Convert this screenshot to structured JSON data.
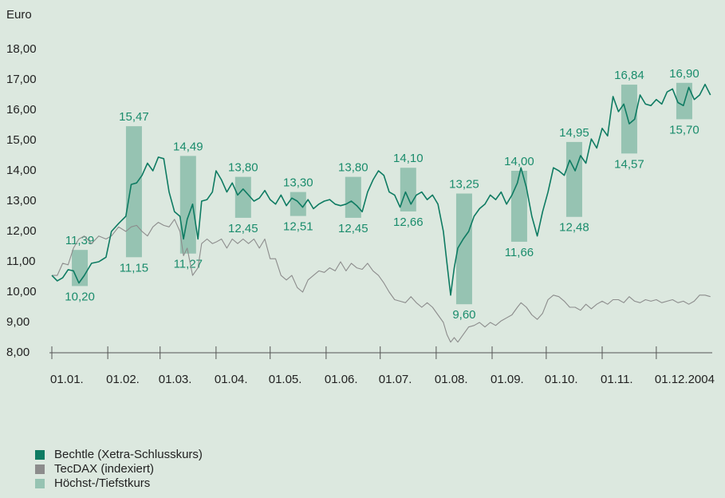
{
  "chart_data": {
    "type": "line",
    "ylabel": "Euro",
    "ylim": [
      8,
      18
    ],
    "yticks": [
      {
        "value": 8,
        "label": "8,00"
      },
      {
        "value": 9,
        "label": "9,00"
      },
      {
        "value": 10,
        "label": "10,00"
      },
      {
        "value": 11,
        "label": "11,00"
      },
      {
        "value": 12,
        "label": "12,00"
      },
      {
        "value": 13,
        "label": "13,00"
      },
      {
        "value": 14,
        "label": "14,00"
      },
      {
        "value": 15,
        "label": "15,00"
      },
      {
        "value": 16,
        "label": "16,00"
      },
      {
        "value": 17,
        "label": "17,00"
      },
      {
        "value": 18,
        "label": "18,00"
      }
    ],
    "xlim": [
      0,
      366
    ],
    "xticks": [
      {
        "value": 0,
        "label": "01.01."
      },
      {
        "value": 31,
        "label": "01.02."
      },
      {
        "value": 60,
        "label": "01.03."
      },
      {
        "value": 91,
        "label": "01.04."
      },
      {
        "value": 121,
        "label": "01.05."
      },
      {
        "value": 152,
        "label": "01.06."
      },
      {
        "value": 182,
        "label": "01.07."
      },
      {
        "value": 213,
        "label": "01.08."
      },
      {
        "value": 244,
        "label": "01.09."
      },
      {
        "value": 274,
        "label": "01.10."
      },
      {
        "value": 305,
        "label": "01.11."
      },
      {
        "value": 335,
        "label": "01.12.2004"
      }
    ],
    "x": [
      0,
      3,
      6,
      9,
      12,
      15,
      18,
      22,
      26,
      30,
      33,
      37,
      41,
      44,
      47,
      50,
      53,
      56,
      59,
      62,
      65,
      68,
      71,
      73,
      75,
      78,
      81,
      83,
      86,
      89,
      91,
      94,
      97,
      100,
      103,
      106,
      109,
      112,
      115,
      118,
      121,
      124,
      127,
      130,
      133,
      136,
      139,
      142,
      145,
      148,
      151,
      154,
      157,
      160,
      163,
      166,
      169,
      172,
      175,
      178,
      181,
      184,
      187,
      190,
      193,
      196,
      199,
      202,
      205,
      208,
      211,
      214,
      217,
      219,
      221,
      223,
      225,
      228,
      231,
      234,
      237,
      240,
      243,
      246,
      249,
      252,
      255,
      258,
      260,
      263,
      266,
      269,
      272,
      275,
      278,
      281,
      284,
      287,
      290,
      293,
      296,
      299,
      302,
      305,
      308,
      311,
      314,
      317,
      320,
      323,
      326,
      329,
      332,
      335,
      338,
      341,
      344,
      347,
      350,
      353,
      356,
      359,
      362,
      365
    ],
    "series": [
      {
        "name": "Bechtle (Xetra-Schlusskurs)",
        "color": "#0e7b62",
        "values": [
          10.55,
          10.37,
          10.47,
          10.74,
          10.7,
          10.3,
          10.55,
          10.95,
          11.0,
          11.15,
          12.0,
          12.26,
          12.5,
          13.55,
          13.6,
          13.85,
          14.25,
          14.0,
          14.45,
          14.4,
          13.3,
          12.65,
          12.5,
          11.75,
          12.4,
          12.9,
          11.75,
          13.0,
          13.05,
          13.3,
          14.0,
          13.7,
          13.3,
          13.6,
          13.2,
          13.4,
          13.2,
          13.0,
          13.1,
          13.35,
          13.05,
          12.9,
          13.2,
          12.85,
          13.1,
          13.0,
          12.8,
          13.05,
          12.75,
          12.9,
          13.0,
          13.05,
          12.9,
          12.85,
          12.9,
          13.0,
          12.85,
          12.65,
          13.3,
          13.7,
          14.0,
          13.85,
          13.3,
          13.2,
          12.8,
          13.3,
          12.9,
          13.2,
          13.3,
          13.05,
          13.2,
          12.9,
          12.0,
          10.95,
          9.9,
          10.8,
          11.45,
          11.75,
          12.0,
          12.5,
          12.75,
          12.9,
          13.2,
          13.05,
          13.3,
          12.9,
          13.2,
          13.6,
          14.1,
          13.45,
          12.5,
          11.85,
          12.65,
          13.3,
          14.1,
          14.0,
          13.85,
          14.35,
          14.0,
          14.5,
          14.25,
          15.05,
          14.75,
          15.4,
          15.15,
          16.45,
          15.95,
          16.2,
          15.55,
          15.7,
          16.5,
          16.2,
          16.15,
          16.35,
          16.2,
          16.6,
          16.7,
          16.25,
          16.15,
          16.75,
          16.35,
          16.5,
          16.85,
          16.5
        ]
      },
      {
        "name": "TecDAX (indexiert)",
        "color": "#8c8c8c",
        "values": [
          10.55,
          10.55,
          10.95,
          10.9,
          11.45,
          11.75,
          11.85,
          11.6,
          11.85,
          11.75,
          11.85,
          12.15,
          12.0,
          12.15,
          12.2,
          12.0,
          11.85,
          12.15,
          12.3,
          12.2,
          12.15,
          12.4,
          12.0,
          11.2,
          11.45,
          10.55,
          10.8,
          11.6,
          11.75,
          11.6,
          11.65,
          11.75,
          11.45,
          11.75,
          11.6,
          11.75,
          11.6,
          11.75,
          11.45,
          11.75,
          11.1,
          11.1,
          10.55,
          10.4,
          10.55,
          10.15,
          10.0,
          10.4,
          10.55,
          10.7,
          10.65,
          10.8,
          10.7,
          11.0,
          10.7,
          10.95,
          10.8,
          10.75,
          10.95,
          10.7,
          10.55,
          10.3,
          10.0,
          9.75,
          9.7,
          9.65,
          9.85,
          9.65,
          9.5,
          9.65,
          9.5,
          9.25,
          9.0,
          8.6,
          8.35,
          8.5,
          8.35,
          8.6,
          8.85,
          8.9,
          9.0,
          8.85,
          9.0,
          8.9,
          9.05,
          9.15,
          9.25,
          9.5,
          9.65,
          9.5,
          9.25,
          9.1,
          9.3,
          9.75,
          9.9,
          9.85,
          9.7,
          9.5,
          9.5,
          9.4,
          9.6,
          9.45,
          9.6,
          9.7,
          9.6,
          9.75,
          9.75,
          9.65,
          9.85,
          9.7,
          9.65,
          9.75,
          9.7,
          9.75,
          9.65,
          9.7,
          9.75,
          9.65,
          9.7,
          9.6,
          9.7,
          9.9,
          9.9,
          9.85
        ]
      }
    ],
    "ranges": {
      "name": "Höchst-/Tiefstkurs",
      "color": "#96c3b2",
      "label_color": "#1a8c6c",
      "high": [
        11.39,
        15.47,
        14.49,
        13.8,
        13.3,
        13.8,
        14.1,
        13.25,
        14.0,
        14.95,
        16.84,
        16.9
      ],
      "low": [
        10.2,
        11.15,
        11.27,
        12.45,
        12.51,
        12.45,
        12.66,
        9.6,
        11.66,
        12.48,
        14.57,
        15.7
      ],
      "high_value_labels": [
        "11,39",
        "15,47",
        "14,49",
        "13,80",
        "13,30",
        "13,80",
        "14,10",
        "13,25",
        "14,00",
        "14,95",
        "16,84",
        "16,90"
      ],
      "low_value_labels": [
        "10,20",
        "11,15",
        "11,27",
        "12,45",
        "12,51",
        "12,45",
        "12,66",
        "9,60",
        "11,66",
        "12,48",
        "14,57",
        "15,70"
      ]
    }
  }
}
